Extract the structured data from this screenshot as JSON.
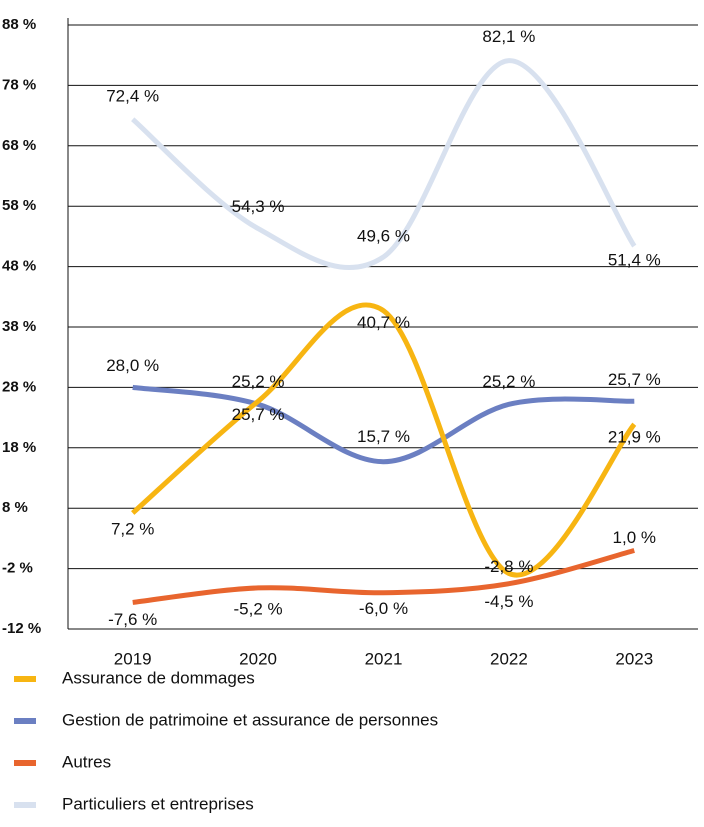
{
  "chart_data": {
    "type": "line",
    "categories": [
      "2019",
      "2020",
      "2021",
      "2022",
      "2023"
    ],
    "ylim": [
      -12,
      88
    ],
    "yticks": [
      {
        "value": -12,
        "label": "-12 %"
      },
      {
        "value": -2,
        "label": "-2 %"
      },
      {
        "value": 8,
        "label": "8 %"
      },
      {
        "value": 18,
        "label": "18 %"
      },
      {
        "value": 28,
        "label": "28 %"
      },
      {
        "value": 38,
        "label": "38 %"
      },
      {
        "value": 48,
        "label": "48 %"
      },
      {
        "value": 58,
        "label": "58 %"
      },
      {
        "value": 68,
        "label": "68 %"
      },
      {
        "value": 78,
        "label": "78 %"
      },
      {
        "value": 88,
        "label": "88 %"
      }
    ],
    "grid": true,
    "legend": "bottom",
    "series": [
      {
        "name": "Assurance de dommages",
        "color": "#f7b512",
        "values": [
          7.2,
          25.7,
          40.7,
          -2.8,
          21.9
        ],
        "value_labels": [
          "7,2 %",
          "25,7 %",
          "40,7 %",
          "-2,8 %",
          "21,9 %"
        ]
      },
      {
        "name": "Gestion de patrimoine et assurance de personnes",
        "color": "#6b7fc2",
        "values": [
          28.0,
          25.2,
          15.7,
          25.2,
          25.7
        ],
        "value_labels": [
          "28,0 %",
          "25,2 %",
          "15,7 %",
          "25,2 %",
          "25,7 %"
        ]
      },
      {
        "name": "Autres",
        "color": "#e8652e",
        "values": [
          -7.6,
          -5.2,
          -6.0,
          -4.5,
          1.0
        ],
        "value_labels": [
          "-7,6 %",
          "-5,2 %",
          "-6,0 %",
          "-4,5 %",
          "1,0 %"
        ]
      },
      {
        "name": "Particuliers et entreprises",
        "color": "#d8e1ef",
        "values": [
          72.4,
          54.3,
          49.6,
          82.1,
          51.4
        ],
        "value_labels": [
          "72,4 %",
          "54,3 %",
          "49,6 %",
          "82,1 %",
          "51,4 %"
        ]
      }
    ]
  }
}
